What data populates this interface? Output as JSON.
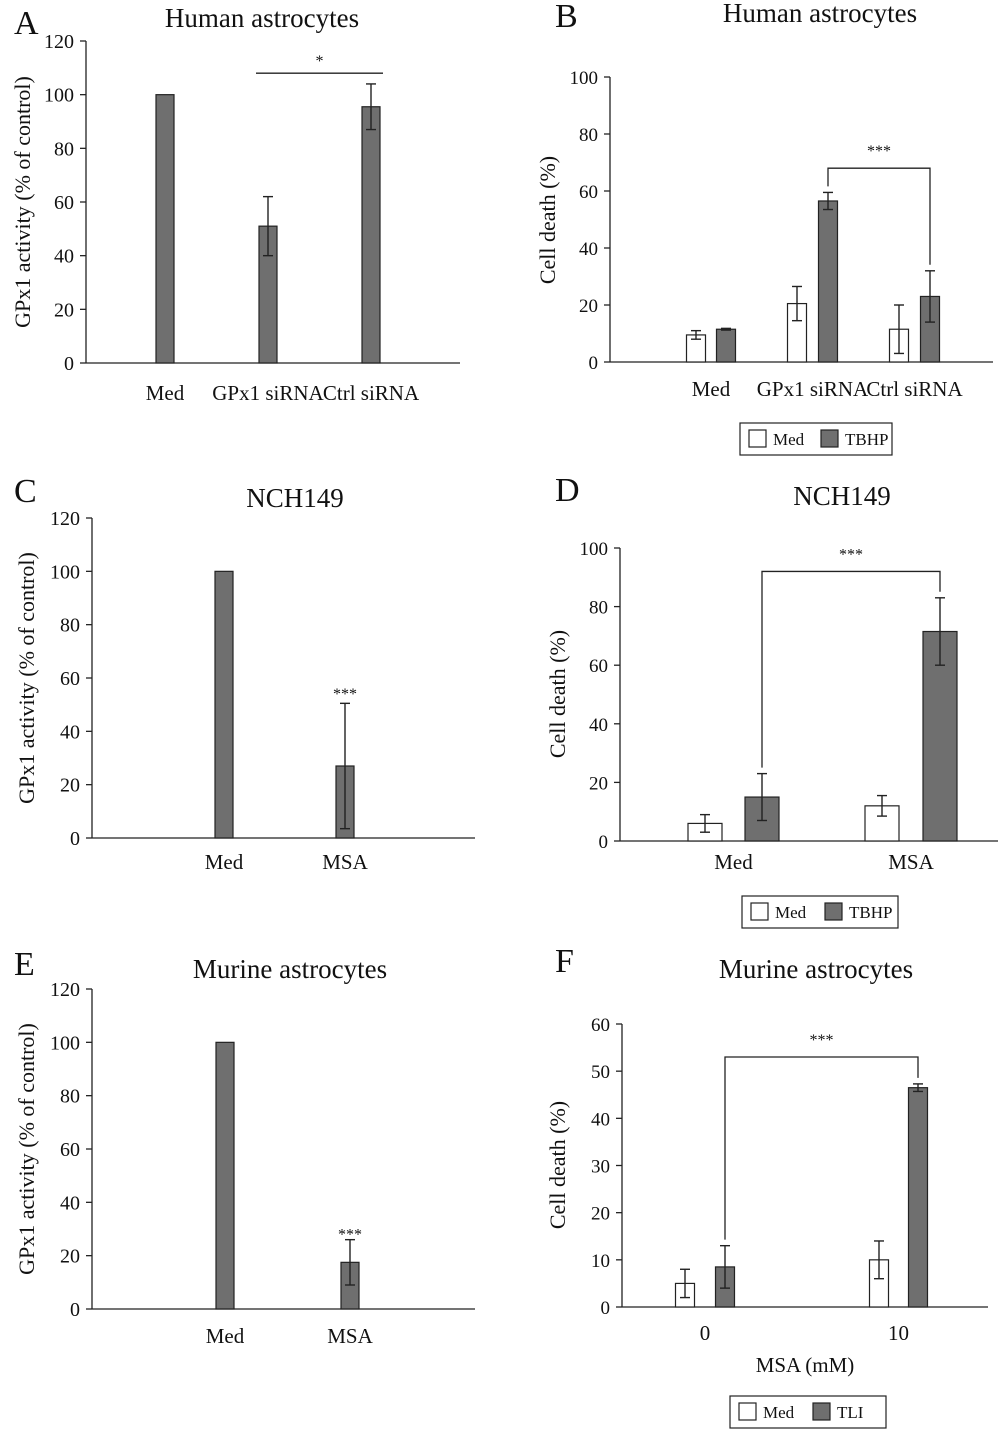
{
  "chart_data": [
    {
      "letter": "A",
      "type": "bar",
      "title": "Human astrocytes",
      "ylabel": "GPx1 activity (% of control)",
      "xlabel": "",
      "ylim": [
        0,
        120
      ],
      "ticks": [
        0,
        20,
        40,
        60,
        80,
        100,
        120
      ],
      "categories": [
        "Med",
        "GPx1 siRNA",
        "Ctrl siRNA"
      ],
      "series": [
        {
          "color": "#6f6f6f",
          "values": [
            100,
            51,
            95.5
          ],
          "errors": [
            0,
            11,
            8.5
          ]
        }
      ],
      "annotations": [
        {
          "text": "*",
          "type": "line",
          "from": 1,
          "to": 2,
          "y": 108
        }
      ],
      "legend": null
    },
    {
      "letter": "B",
      "type": "bar",
      "title": "Human astrocytes",
      "ylabel": "Cell death (%)",
      "xlabel": "",
      "ylim": [
        0,
        100
      ],
      "ticks": [
        0,
        20,
        40,
        60,
        80,
        100
      ],
      "categories": [
        "Med",
        "GPx1 siRNA",
        "Ctrl siRNA"
      ],
      "series": [
        {
          "name": "Med",
          "color": "#ffffff",
          "values": [
            9.5,
            20.5,
            11.5
          ],
          "errors": [
            1.5,
            6,
            8.5
          ]
        },
        {
          "name": "TBHP",
          "color": "#6f6f6f",
          "values": [
            11.5,
            56.5,
            23
          ],
          "errors": [
            0.3,
            3,
            9
          ]
        }
      ],
      "annotations": [
        {
          "text": "***",
          "type": "bracket",
          "from": [
            1,
            1
          ],
          "to": [
            2,
            1
          ],
          "y": 68
        }
      ],
      "legend": [
        "Med",
        "TBHP"
      ]
    },
    {
      "letter": "C",
      "type": "bar",
      "title": "NCH149",
      "ylabel": "GPx1 activity (% of control)",
      "xlabel": "",
      "ylim": [
        0,
        120
      ],
      "ticks": [
        0,
        20,
        40,
        60,
        80,
        100,
        120
      ],
      "categories": [
        "Med",
        "MSA"
      ],
      "series": [
        {
          "color": "#6f6f6f",
          "values": [
            100,
            27
          ],
          "errors": [
            0,
            23.5
          ]
        }
      ],
      "annotations": [
        {
          "text": "***",
          "type": "star",
          "cat": 1,
          "y": 54
        }
      ],
      "legend": null
    },
    {
      "letter": "D",
      "type": "bar",
      "title": "NCH149",
      "ylabel": "Cell death (%)",
      "xlabel": "",
      "ylim": [
        0,
        100
      ],
      "ticks": [
        0,
        20,
        40,
        60,
        80,
        100
      ],
      "categories": [
        "Med",
        "MSA"
      ],
      "series": [
        {
          "name": "Med",
          "color": "#ffffff",
          "values": [
            6,
            12
          ],
          "errors": [
            3,
            3.5
          ]
        },
        {
          "name": "TBHP",
          "color": "#6f6f6f",
          "values": [
            15,
            71.5
          ],
          "errors": [
            8,
            11.5
          ]
        }
      ],
      "annotations": [
        {
          "text": "***",
          "type": "bracket",
          "from": [
            0,
            1
          ],
          "to": [
            1,
            1
          ],
          "y": 92
        }
      ],
      "legend": [
        "Med",
        "TBHP"
      ]
    },
    {
      "letter": "E",
      "type": "bar",
      "title": "Murine astrocytes",
      "ylabel": "GPx1 activity (% of control)",
      "xlabel": "",
      "ylim": [
        0,
        120
      ],
      "ticks": [
        0,
        20,
        40,
        60,
        80,
        100,
        120
      ],
      "categories": [
        "Med",
        "MSA"
      ],
      "series": [
        {
          "color": "#6f6f6f",
          "values": [
            100,
            17.5
          ],
          "errors": [
            0,
            8.5
          ]
        }
      ],
      "annotations": [
        {
          "text": "***",
          "type": "star",
          "cat": 1,
          "y": 28
        }
      ],
      "legend": null
    },
    {
      "letter": "F",
      "type": "bar",
      "title": "Murine astrocytes",
      "ylabel": "Cell death (%)",
      "xlabel": "MSA (mM)",
      "ylim": [
        0,
        60
      ],
      "ticks": [
        0,
        10,
        20,
        30,
        40,
        50,
        60
      ],
      "categories": [
        "0",
        "10"
      ],
      "series": [
        {
          "name": "Med",
          "color": "#ffffff",
          "values": [
            5,
            10
          ],
          "errors": [
            3,
            4
          ]
        },
        {
          "name": "TLI",
          "color": "#6f6f6f",
          "values": [
            8.5,
            46.5
          ],
          "errors": [
            4.5,
            0.8
          ]
        }
      ],
      "annotations": [
        {
          "text": "***",
          "type": "bracket",
          "from": [
            0,
            1
          ],
          "to": [
            1,
            1
          ],
          "y": 53
        }
      ],
      "legend": [
        "Med",
        "TLI"
      ]
    }
  ]
}
